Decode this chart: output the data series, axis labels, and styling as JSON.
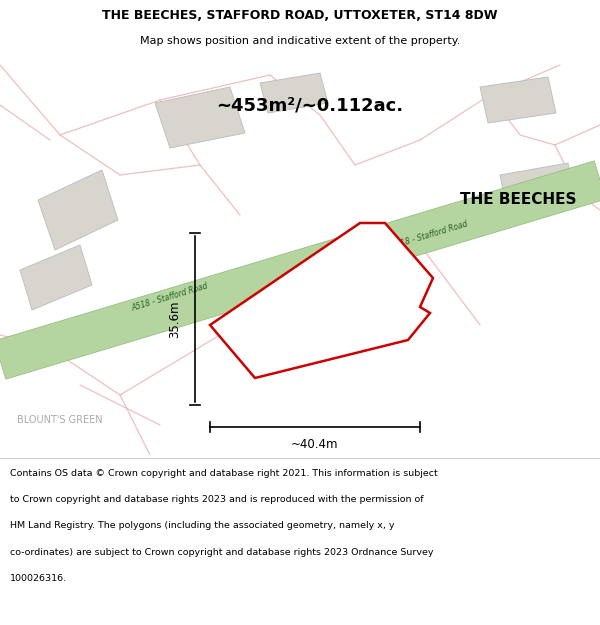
{
  "title_line1": "THE BEECHES, STAFFORD ROAD, UTTOXETER, ST14 8DW",
  "title_line2": "Map shows position and indicative extent of the property.",
  "area_label": "~453m²/~0.112ac.",
  "property_label": "THE BEECHES",
  "road_label": "A518 - Stafford Road",
  "width_label": "~40.4m",
  "height_label": "35.6m",
  "locality_label": "BLOUNT'S GREEN",
  "footer_lines": [
    "Contains OS data © Crown copyright and database right 2021. This information is subject",
    "to Crown copyright and database rights 2023 and is reproduced with the permission of",
    "HM Land Registry. The polygons (including the associated geometry, namely x, y",
    "co-ordinates) are subject to Crown copyright and database rights 2023 Ordnance Survey",
    "100026316."
  ],
  "map_bg_color": "#f7f4f0",
  "road_fill_color": "#b5d5a0",
  "road_edge_color": "#90b878",
  "property_outline_color": "#cc0000",
  "building_fill": "#d8d4ce",
  "building_edge": "#bbbbbb",
  "pink_road_color": "#e8b0b0",
  "pink_road_alpha": 0.8
}
